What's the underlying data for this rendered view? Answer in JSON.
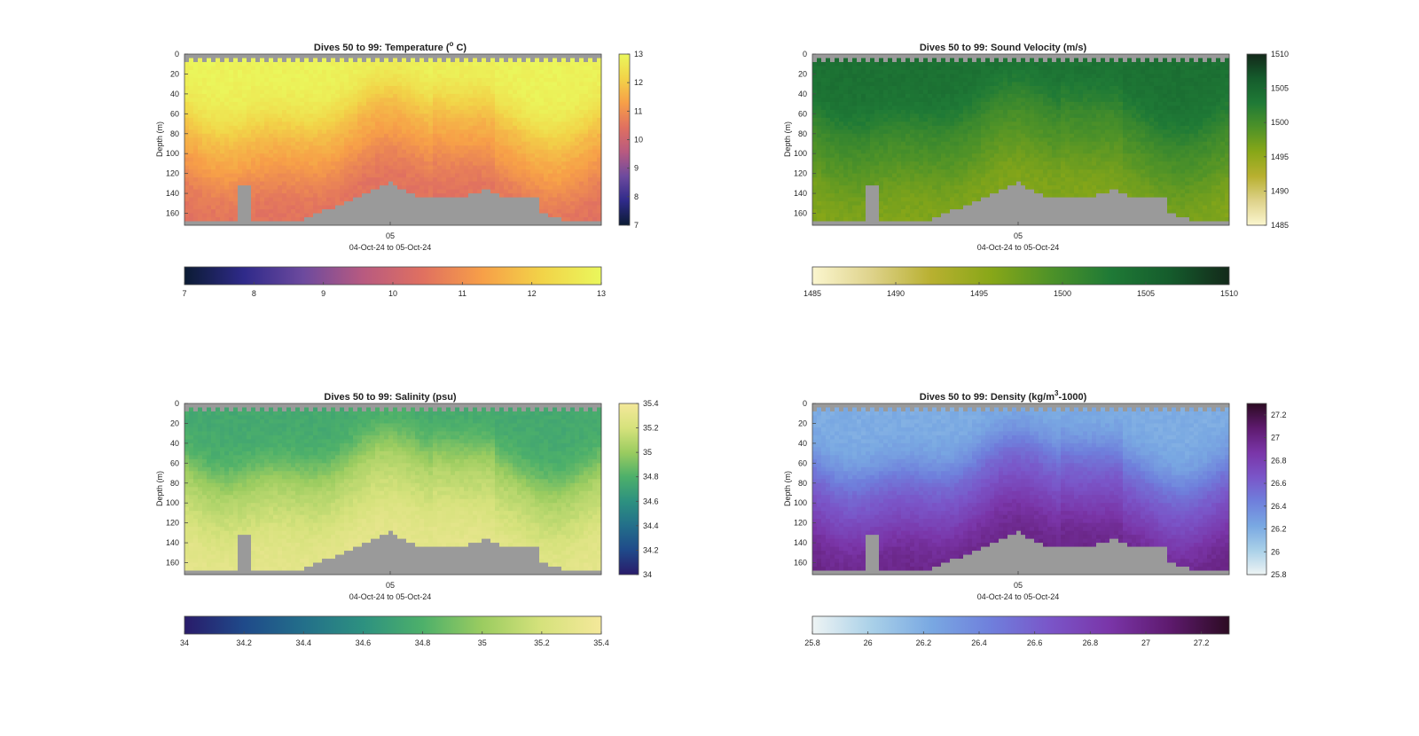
{
  "chart_data": [
    {
      "type": "heatmap",
      "title_main": "Dives 50 to 99: Temperature (",
      "title_sup": "o",
      "title_end": " C)",
      "ylabel": "Depth (m)",
      "xlabel": "04-Oct-24 to 05-Oct-24",
      "x_ticks": [
        "05"
      ],
      "y_ticks": [
        "0",
        "20",
        "40",
        "60",
        "80",
        "100",
        "120",
        "140",
        "160"
      ],
      "ylim": [
        0,
        172
      ],
      "y_reversed": true,
      "colorbar_range": [
        7,
        13
      ],
      "colorbar_ticks": [
        "7",
        "8",
        "9",
        "10",
        "11",
        "12",
        "13"
      ],
      "colormap": [
        "#0b1b33",
        "#2f2a8a",
        "#6d4a9e",
        "#b85a80",
        "#e07060",
        "#f79f48",
        "#f2d348",
        "#eaf75c"
      ],
      "nodata_color": "#9a9a9a",
      "surface_value": 12.9,
      "mid_value": 11.6,
      "deep_value": 10.4
    },
    {
      "type": "heatmap",
      "title_main": "Dives 50 to 99: Sound Velocity (m/s)",
      "title_sup": "",
      "title_end": "",
      "ylabel": "Depth (m)",
      "xlabel": "04-Oct-24 to 05-Oct-24",
      "x_ticks": [
        "05"
      ],
      "y_ticks": [
        "0",
        "20",
        "40",
        "60",
        "80",
        "100",
        "120",
        "140",
        "160"
      ],
      "ylim": [
        0,
        172
      ],
      "y_reversed": true,
      "colorbar_range": [
        1485,
        1510
      ],
      "colorbar_ticks": [
        "1485",
        "1490",
        "1495",
        "1500",
        "1505",
        "1510"
      ],
      "colormap": [
        "#fbf6cf",
        "#ded28a",
        "#b8b030",
        "#88a718",
        "#4e9228",
        "#1f7a36",
        "#155c2c",
        "#13291a"
      ],
      "nodata_color": "#9a9a9a",
      "surface_value": 1504,
      "mid_value": 1500,
      "deep_value": 1496
    },
    {
      "type": "heatmap",
      "title_main": "Dives 50 to 99: Salinity (psu)",
      "title_sup": "",
      "title_end": "",
      "ylabel": "Depth (m)",
      "xlabel": "04-Oct-24 to 05-Oct-24",
      "x_ticks": [
        "05"
      ],
      "y_ticks": [
        "0",
        "20",
        "40",
        "60",
        "80",
        "100",
        "120",
        "140",
        "160"
      ],
      "ylim": [
        0,
        172
      ],
      "y_reversed": true,
      "colorbar_range": [
        34,
        35.4
      ],
      "colorbar_ticks": [
        "34",
        "34.2",
        "34.4",
        "34.6",
        "34.8",
        "35",
        "35.2",
        "35.4"
      ],
      "colormap": [
        "#291b6a",
        "#1f4a8a",
        "#236f8a",
        "#2d9180",
        "#4db06a",
        "#9bcc60",
        "#d6e27c",
        "#f4e89a"
      ],
      "nodata_color": "#9a9a9a",
      "surface_value": 34.75,
      "mid_value": 35.1,
      "deep_value": 35.3
    },
    {
      "type": "heatmap",
      "title_main": "Dives 50 to 99: Density (kg/m",
      "title_sup": "3",
      "title_end": "-1000)",
      "ylabel": "Depth (m)",
      "xlabel": "04-Oct-24 to 05-Oct-24",
      "x_ticks": [
        "05"
      ],
      "y_ticks": [
        "0",
        "20",
        "40",
        "60",
        "80",
        "100",
        "120",
        "140",
        "160"
      ],
      "ylim": [
        0,
        172
      ],
      "y_reversed": true,
      "colorbar_range": [
        25.8,
        27.3
      ],
      "colorbar_ticks": [
        "25.8",
        "26",
        "26.2",
        "26.4",
        "26.6",
        "26.8",
        "27",
        "27.2"
      ],
      "colormap": [
        "#eef4f4",
        "#a9d0e8",
        "#79a8e2",
        "#6f7fdc",
        "#7a55c8",
        "#7a35a8",
        "#5e1a6e",
        "#2c0b22"
      ],
      "nodata_color": "#9a9a9a",
      "surface_value": 26.2,
      "mid_value": 26.6,
      "deep_value": 27.0
    }
  ]
}
